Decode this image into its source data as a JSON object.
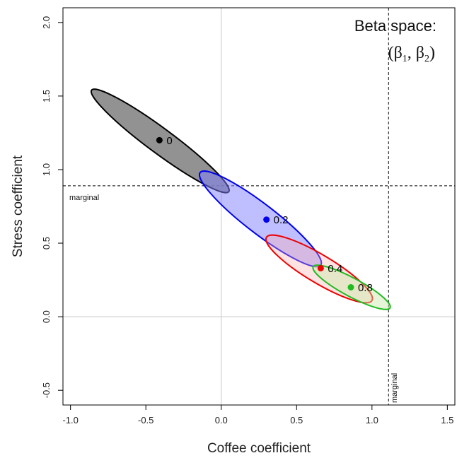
{
  "chart_data": {
    "type": "scatter",
    "title": "Beta space:",
    "subtitle": {
      "open": "(",
      "beta1": "β",
      "sub1": "1",
      "sep": ", ",
      "beta2": "β",
      "sub2": "2",
      "close": ")"
    },
    "xlabel": "Coffee coefficient",
    "ylabel": "Stress coefficient",
    "xlim": [
      -1.05,
      1.55
    ],
    "ylim": [
      -0.6,
      2.1
    ],
    "x_ticks": [
      -1.0,
      -0.5,
      0.0,
      0.5,
      1.0,
      1.5
    ],
    "x_tick_labels": [
      "-1.0",
      "-0.5",
      "0.0",
      "0.5",
      "1.0",
      "1.5"
    ],
    "y_ticks": [
      -0.5,
      0.0,
      0.5,
      1.0,
      1.5,
      2.0
    ],
    "y_tick_labels": [
      "-0.5",
      "0.0",
      "0.5",
      "1.0",
      "1.5",
      "2.0"
    ],
    "reference_lines": {
      "zero_lines": {
        "x": 0.0,
        "y": 0.0,
        "color": "#c8c8c8"
      },
      "marginal_x": {
        "value": 1.11,
        "label": "marginal"
      },
      "marginal_y": {
        "value": 0.89,
        "label": "marginal"
      }
    },
    "series": [
      {
        "label": "0",
        "point": [
          -0.41,
          1.2
        ],
        "stroke": "#000000",
        "fill": "#777777",
        "fill_opacity": 0.8,
        "ellipse_ends": [
          [
            -0.86,
            1.54
          ],
          [
            0.05,
            0.85
          ]
        ],
        "ellipse_width": 0.17
      },
      {
        "label": "0.2",
        "point": [
          0.3,
          0.66
        ],
        "stroke": "#0000ee",
        "fill": "#8080ff",
        "fill_opacity": 0.5,
        "ellipse_ends": [
          [
            -0.14,
            0.98
          ],
          [
            0.66,
            0.35
          ]
        ],
        "ellipse_width": 0.2
      },
      {
        "label": "0.4",
        "point": [
          0.66,
          0.33
        ],
        "stroke": "#ee0000",
        "fill": "#ffb0b0",
        "fill_opacity": 0.35,
        "ellipse_ends": [
          [
            0.3,
            0.54
          ],
          [
            1.0,
            0.11
          ]
        ],
        "ellipse_width": 0.19
      },
      {
        "label": "0.8",
        "point": [
          0.86,
          0.2
        ],
        "stroke": "#22bb22",
        "fill": "#c8e8a8",
        "fill_opacity": 0.45,
        "ellipse_ends": [
          [
            0.61,
            0.34
          ],
          [
            1.12,
            0.06
          ]
        ],
        "ellipse_width": 0.125
      }
    ]
  }
}
